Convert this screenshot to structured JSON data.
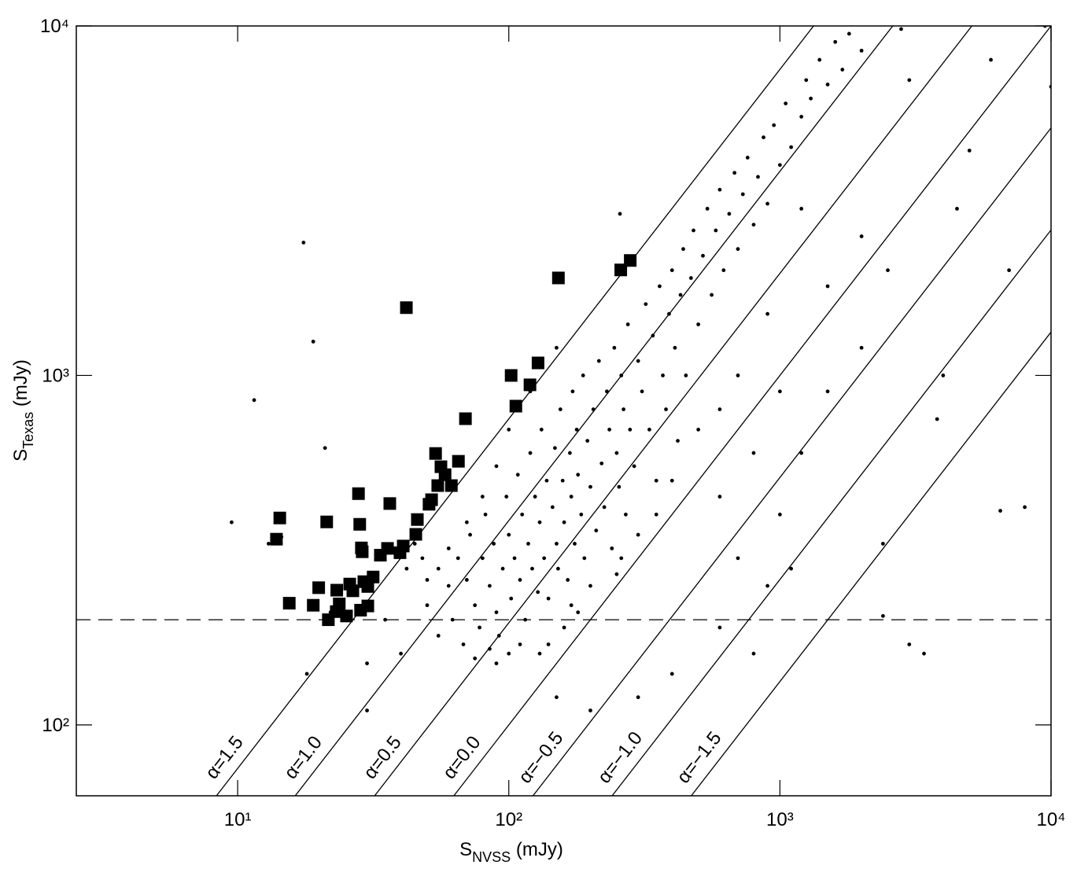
{
  "chart_data": {
    "type": "scatter",
    "log_x": true,
    "log_y": true,
    "xlabel": {
      "main": "S",
      "sub": "NVSS",
      "unit": " (mJy)"
    },
    "ylabel": {
      "main": "S",
      "sub": "Texas",
      "unit": " (mJy)"
    },
    "xlim": [
      2.54,
      10000
    ],
    "ylim": [
      62.7,
      10000
    ],
    "xticks": [
      {
        "value": 10,
        "label": "10¹"
      },
      {
        "value": 100,
        "label": "10²"
      },
      {
        "value": 1000,
        "label": "10³"
      },
      {
        "value": 10000,
        "label": "10⁴"
      }
    ],
    "yticks": [
      {
        "value": 100,
        "label": "10²"
      },
      {
        "value": 1000,
        "label": "10³"
      },
      {
        "value": 10000,
        "label": "10⁴"
      }
    ],
    "hline": 200,
    "lines": [
      {
        "label": "α=1.5",
        "x": [
          8.35,
          1331
        ],
        "y": [
          62.7,
          10000
        ]
      },
      {
        "label": "α=1.0",
        "x": [
          16.3,
          2607
        ],
        "y": [
          62.7,
          10000
        ]
      },
      {
        "label": "α=0.5",
        "x": [
          32.0,
          5105
        ],
        "y": [
          62.7,
          10000
        ]
      },
      {
        "label": "α=0.0",
        "x": [
          62.7,
          10000
        ],
        "y": [
          62.7,
          10000
        ]
      },
      {
        "label": "α=−0.5",
        "x": [
          122.8,
          10000
        ],
        "y": [
          62.7,
          5106
        ]
      },
      {
        "label": "α=−1.0",
        "x": [
          240.5,
          10000
        ],
        "y": [
          62.7,
          2607
        ]
      },
      {
        "label": "α=−1.5",
        "x": [
          471,
          10000
        ],
        "y": [
          62.7,
          1331
        ]
      }
    ],
    "series": [
      {
        "marker": "dot",
        "color": "#000000",
        "x": [
          50,
          55,
          60,
          62,
          65,
          68,
          70,
          72,
          75,
          78,
          80,
          82,
          85,
          88,
          90,
          92,
          95,
          98,
          100,
          102,
          105,
          108,
          110,
          112,
          115,
          118,
          120,
          122,
          125,
          128,
          130,
          132,
          135,
          138,
          140,
          145,
          148,
          150,
          152,
          155,
          158,
          160,
          165,
          168,
          170,
          172,
          175,
          178,
          180,
          185,
          188,
          190,
          195,
          200,
          205,
          210,
          215,
          220,
          225,
          230,
          235,
          240,
          245,
          250,
          255,
          260,
          265,
          270,
          275,
          280,
          290,
          300,
          310,
          320,
          330,
          340,
          350,
          360,
          370,
          380,
          390,
          400,
          410,
          420,
          430,
          440,
          450,
          470,
          480,
          500,
          520,
          540,
          560,
          580,
          600,
          620,
          650,
          680,
          700,
          730,
          760,
          800,
          830,
          870,
          900,
          950,
          1000,
          1050,
          1100,
          1200,
          1250,
          1300,
          1400,
          1500,
          1600,
          1700,
          1800,
          2000,
          1200,
          900,
          700,
          600,
          500,
          400,
          350,
          300,
          250,
          200,
          180,
          160,
          140,
          130,
          150,
          120,
          100,
          90,
          80,
          70,
          60,
          55,
          50,
          48,
          110,
          170,
          260,
          600,
          800,
          1000,
          1500,
          2000,
          90,
          100,
          75,
          85,
          700,
          900,
          1000,
          1200,
          1500,
          2000,
          2500,
          1100,
          800,
          600,
          400,
          300,
          200,
          150,
          40,
          35,
          30,
          45,
          42,
          18,
          22,
          30,
          17.5,
          19,
          11.5,
          21,
          9.5,
          13,
          14.5,
          257,
          3000,
          3400,
          2400,
          6500,
          8000,
          2400,
          3800,
          4000,
          5000,
          9500,
          10000,
          2800,
          3000,
          6000,
          4500,
          7000
        ],
        "y": [
          220,
          180,
          250,
          200,
          300,
          170,
          260,
          350,
          220,
          190,
          300,
          400,
          250,
          330,
          210,
          180,
          280,
          450,
          350,
          230,
          300,
          520,
          260,
          400,
          200,
          330,
          600,
          280,
          450,
          240,
          380,
          700,
          300,
          500,
          230,
          420,
          620,
          330,
          280,
          800,
          500,
          380,
          260,
          600,
          450,
          900,
          330,
          700,
          520,
          400,
          1000,
          300,
          650,
          480,
          800,
          360,
          1100,
          560,
          420,
          900,
          700,
          320,
          1200,
          600,
          480,
          1000,
          800,
          400,
          1400,
          700,
          550,
          1100,
          900,
          1600,
          700,
          1300,
          500,
          1800,
          1000,
          800,
          1500,
          2000,
          1200,
          650,
          1700,
          2300,
          1000,
          1900,
          2600,
          1400,
          2200,
          3000,
          1700,
          2600,
          3400,
          2000,
          2900,
          3800,
          2300,
          3300,
          4200,
          2700,
          3700,
          4800,
          3100,
          5200,
          4000,
          6000,
          4500,
          5500,
          7000,
          6200,
          8000,
          6800,
          9000,
          7500,
          9500,
          8500,
          3000,
          1500,
          1000,
          800,
          700,
          500,
          400,
          350,
          270,
          250,
          210,
          190,
          170,
          160,
          1200,
          900,
          700,
          550,
          450,
          380,
          320,
          280,
          260,
          300,
          170,
          220,
          300,
          450,
          600,
          900,
          1800,
          2500,
          150,
          160,
          155,
          165,
          300,
          250,
          400,
          600,
          900,
          1200,
          2000,
          280,
          160,
          190,
          140,
          120,
          110,
          120,
          160,
          200,
          110,
          330,
          280,
          140,
          210,
          150,
          2400,
          1250,
          850,
          620,
          380,
          330,
          345,
          2900,
          170,
          160,
          205,
          410,
          420,
          330,
          750,
          1000,
          4400,
          10000,
          6700,
          9800,
          7000,
          8000,
          3000,
          2000
        ]
      },
      {
        "marker": "square",
        "color": "#000000",
        "x": [
          41.9,
          152.4,
          280.5,
          258.8,
          102,
          128.2,
          119.7,
          106.2,
          69.2,
          53.7,
          65.2,
          61.4,
          54.7,
          51.9,
          50.8,
          46.0,
          45.4,
          36.4,
          27.9,
          28.2,
          21.3,
          14.3,
          13.9,
          28.6,
          28.8,
          33.6,
          35.7,
          40.8,
          39.7,
          15.5,
          19.0,
          19.9,
          23.2,
          23.7,
          25.9,
          26.6,
          29.2,
          30.2,
          31.6,
          23.1,
          21.6,
          25.2,
          28.4,
          30.2,
          56.2,
          58.2
        ],
        "y": [
          1563,
          1901,
          2133,
          2004,
          1000,
          1086,
          940,
          817,
          752,
          598,
          568,
          484,
          484,
          441,
          428,
          387,
          351,
          430,
          459,
          375,
          381,
          391,
          340,
          321,
          313,
          306,
          320,
          325,
          311,
          223,
          220,
          247,
          243,
          222,
          253,
          242,
          257,
          249,
          265,
          211,
          200,
          205,
          213,
          219,
          548,
          520
        ]
      }
    ]
  }
}
